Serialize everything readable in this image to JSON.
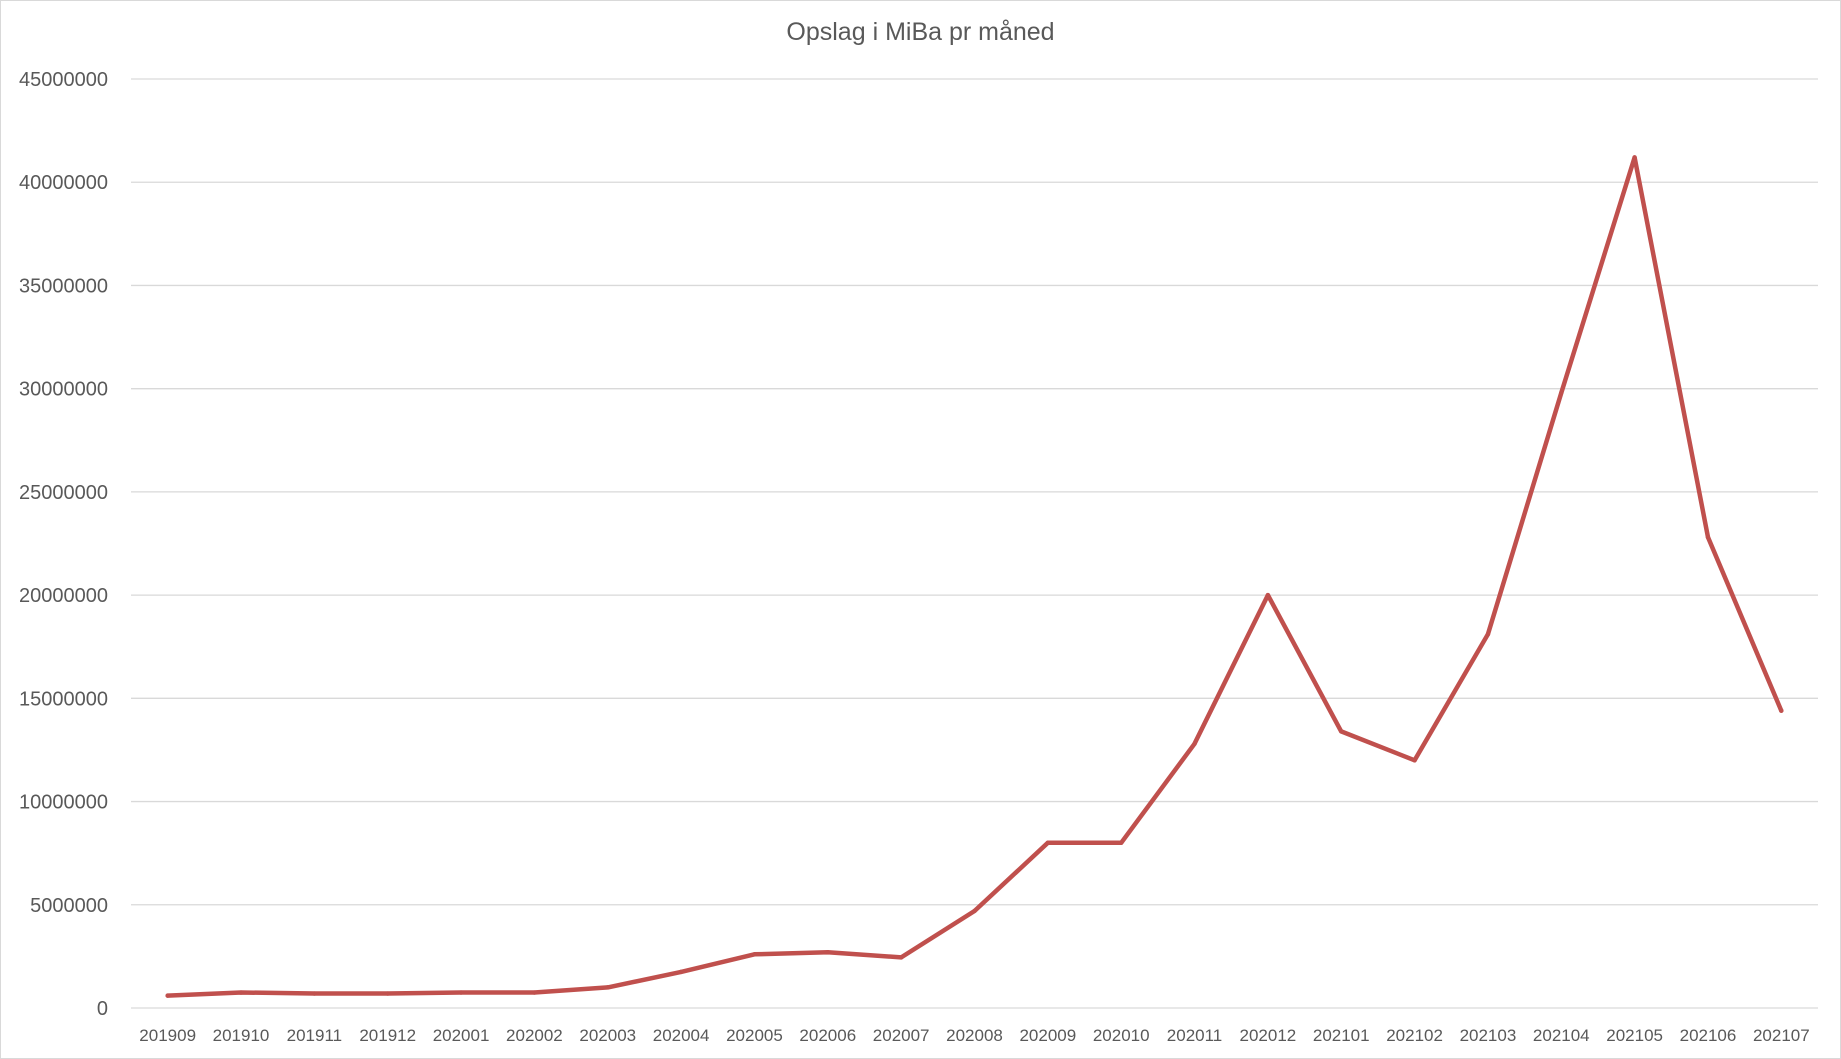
{
  "chart_data": {
    "type": "line",
    "title": "Opslag i MiBa pr måned",
    "xlabel": "",
    "ylabel": "",
    "ylim": [
      0,
      45000000
    ],
    "yticks": [
      "0",
      "5000000",
      "10000000",
      "15000000",
      "20000000",
      "25000000",
      "30000000",
      "35000000",
      "40000000",
      "45000000"
    ],
    "grid": true,
    "legend": "none",
    "categories": [
      "201909",
      "201910",
      "201911",
      "201912",
      "202001",
      "202002",
      "202003",
      "202004",
      "202005",
      "202006",
      "202007",
      "202008",
      "202009",
      "202010",
      "202011",
      "202012",
      "202101",
      "202102",
      "202103",
      "202104",
      "202105",
      "202106",
      "202107"
    ],
    "series": [
      {
        "color": "#c0504d",
        "values": [
          600000,
          750000,
          700000,
          700000,
          750000,
          750000,
          1000000,
          1750000,
          2600000,
          2700000,
          2450000,
          4700000,
          8000000,
          8000000,
          12800000,
          20000000,
          13400000,
          12000000,
          18100000,
          29800000,
          41200000,
          22800000,
          14400000
        ]
      }
    ]
  }
}
